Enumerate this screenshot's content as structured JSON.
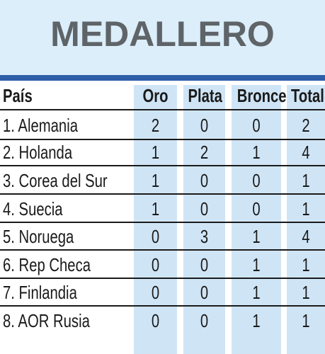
{
  "title": "MEDALLERO",
  "colors": {
    "header_bg": "#dbeefa",
    "accent_rule": "#2f5ea8",
    "column_band": "#cfe5f6",
    "title_text": "#5f6468"
  },
  "table": {
    "headers": {
      "country": "País",
      "gold": "Oro",
      "silver": "Plata",
      "bronze": "Bronce",
      "total": "Total"
    },
    "rows": [
      {
        "country": "1. Alemania",
        "gold": "2",
        "silver": "0",
        "bronze": "0",
        "total": "2"
      },
      {
        "country": "2. Holanda",
        "gold": "1",
        "silver": "2",
        "bronze": "1",
        "total": "4"
      },
      {
        "country": "3. Corea del Sur",
        "gold": "1",
        "silver": "0",
        "bronze": "0",
        "total": "1"
      },
      {
        "country": "4. Suecia",
        "gold": "1",
        "silver": "0",
        "bronze": "0",
        "total": "1"
      },
      {
        "country": "5. Noruega",
        "gold": "0",
        "silver": "3",
        "bronze": "1",
        "total": "4"
      },
      {
        "country": "6. Rep Checa",
        "gold": "0",
        "silver": "0",
        "bronze": "1",
        "total": "1"
      },
      {
        "country": "7. Finlandia",
        "gold": "0",
        "silver": "0",
        "bronze": "1",
        "total": "1"
      },
      {
        "country": "8. AOR Rusia",
        "gold": "0",
        "silver": "0",
        "bronze": "1",
        "total": "1"
      }
    ]
  }
}
